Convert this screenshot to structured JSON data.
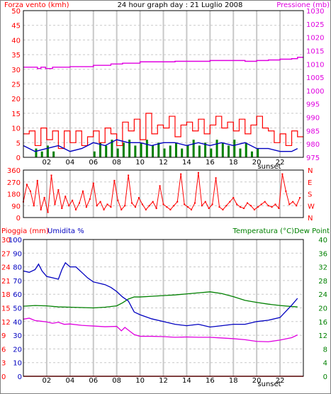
{
  "header": {
    "title": "24 hour graph day : 21 Luglio 2008",
    "left_label": "Forza vento (kmh)",
    "right_label": "Pressione (mb)"
  },
  "colors": {
    "wind": "#ff0000",
    "wind_avg": "#0000c0",
    "rain_bars": "#008000",
    "pressure": "#e000e0",
    "direction": "#ff0000",
    "temperature": "#008000",
    "dew_point": "#e000e0",
    "humidity": "#0000c0",
    "rain": "#ff0000",
    "grid": "#c8c8c8",
    "frame": "#000000"
  },
  "x_ticks": [
    "02",
    "04",
    "06",
    "08",
    "10",
    "12",
    "14",
    "16",
    "18",
    "20",
    "22"
  ],
  "sunset_label": "sunset",
  "chart_data": [
    {
      "type": "line",
      "id": "wind-pressure",
      "ylim": [
        0,
        50
      ],
      "y_ticks": [
        "0",
        "5",
        "10",
        "15",
        "20",
        "25",
        "30",
        "35",
        "40",
        "45",
        "50"
      ],
      "y2lim": [
        975,
        1030
      ],
      "y2_ticks": [
        "975",
        "980",
        "985",
        "990",
        "995",
        "1000",
        "1005",
        "1010",
        "1015",
        "1020",
        "1025",
        "1030"
      ],
      "series": [
        {
          "name": "Forza vento (kmh)",
          "axis": "left",
          "hours": [
            0,
            0.5,
            1,
            1.5,
            2,
            2.5,
            3,
            3.5,
            4,
            4.5,
            5,
            5.5,
            6,
            6.5,
            7,
            7.5,
            8,
            8.5,
            9,
            9.5,
            10,
            10.5,
            11,
            11.5,
            12,
            12.5,
            13,
            13.5,
            14,
            14.5,
            15,
            15.5,
            16,
            16.5,
            17,
            17.5,
            18,
            18.5,
            19,
            19.5,
            20,
            20.5,
            21,
            21.5,
            22,
            22.5,
            23,
            23.5
          ],
          "values": [
            8,
            9,
            4,
            10,
            6,
            9,
            3,
            9,
            5,
            9,
            4,
            7,
            9,
            5,
            10,
            8,
            4,
            12,
            9,
            13,
            6,
            15,
            8,
            11,
            10,
            14,
            7,
            11,
            12,
            9,
            13,
            8,
            11,
            14,
            10,
            12,
            9,
            13,
            8,
            11,
            14,
            10,
            9,
            5,
            8,
            4,
            9,
            7
          ]
        },
        {
          "name": "",
          "axis": "left",
          "hours": [
            0,
            1,
            2,
            3,
            4,
            5,
            6,
            7,
            8,
            9,
            10,
            11,
            12,
            13,
            14,
            15,
            16,
            17,
            18,
            19,
            20,
            21,
            22,
            23,
            23.5
          ],
          "values": [
            4,
            2,
            3,
            4,
            2,
            3,
            5,
            4,
            6,
            5,
            5,
            4,
            5,
            5,
            4,
            5,
            4,
            5,
            4,
            5,
            3,
            3,
            2,
            2,
            3
          ]
        },
        {
          "name": "",
          "axis": "left",
          "type": "bar",
          "hours": [
            1,
            1.5,
            2,
            2.5,
            6,
            6.5,
            7,
            7.5,
            8,
            8.5,
            9,
            9.5,
            10,
            10.5,
            11,
            11.5,
            12,
            12.5,
            13,
            13.5,
            14,
            14.5,
            15,
            15.5,
            16,
            16.5,
            17,
            17.5,
            18,
            18.5,
            19,
            19.5,
            20
          ],
          "values": [
            3,
            2,
            4,
            2,
            2,
            5,
            4,
            6,
            3,
            5,
            6,
            4,
            5,
            6,
            4,
            5,
            3,
            4,
            5,
            3,
            4,
            6,
            4,
            5,
            3,
            6,
            5,
            4,
            6,
            3,
            5,
            2,
            3
          ]
        },
        {
          "name": "Pressione (mb)",
          "axis": "right",
          "hours": [
            0,
            1.2,
            1.2,
            1.5,
            1.5,
            1.9,
            1.9,
            2.5,
            3,
            4,
            5,
            6,
            7,
            7.5,
            8,
            8.5,
            9,
            10,
            11,
            12,
            13,
            14,
            15,
            16,
            17,
            18,
            19,
            20,
            20.5,
            21,
            21.5,
            22,
            23,
            23.5
          ],
          "values": [
            1008.8,
            1008.8,
            1008.3,
            1008.3,
            1008.8,
            1008.8,
            1008.3,
            1008.8,
            1008.8,
            1009,
            1009,
            1009.5,
            1009.5,
            1010,
            1010,
            1010.3,
            1010.3,
            1010.8,
            1010.8,
            1010.8,
            1011,
            1011,
            1011,
            1011.3,
            1011.3,
            1011.3,
            1011,
            1011.3,
            1011.3,
            1011.5,
            1011.5,
            1011.8,
            1012,
            1012.5
          ]
        }
      ]
    },
    {
      "type": "scatter",
      "id": "wind-direction",
      "ylim": [
        0,
        360
      ],
      "y_ticks": [
        "0",
        "90",
        "180",
        "270",
        "360"
      ],
      "y2_ticks": [
        "N",
        "W",
        "S",
        "E",
        "N"
      ],
      "series": [
        {
          "name": "",
          "hours": [
            0,
            0.3,
            0.6,
            0.9,
            1.2,
            1.5,
            1.8,
            2.1,
            2.4,
            2.7,
            3,
            3.3,
            3.6,
            3.9,
            4.2,
            4.5,
            4.8,
            5.1,
            5.4,
            5.7,
            6,
            6.3,
            6.6,
            6.9,
            7.2,
            7.5,
            7.8,
            8.1,
            8.4,
            8.7,
            9,
            9.3,
            9.6,
            9.9,
            10.2,
            10.5,
            10.8,
            11.1,
            11.4,
            11.7,
            12,
            12.3,
            12.6,
            12.9,
            13.2,
            13.5,
            13.8,
            14.1,
            14.4,
            14.7,
            15,
            15.3,
            15.6,
            15.9,
            16.2,
            16.5,
            16.8,
            17.1,
            17.4,
            17.7,
            18,
            18.3,
            18.6,
            18.9,
            19.2,
            19.5,
            19.8,
            20.1,
            20.4,
            20.7,
            21,
            21.3,
            21.6,
            21.9,
            22.2,
            22.5,
            22.8,
            23.1,
            23.4,
            23.7
          ],
          "values": [
            120,
            250,
            200,
            90,
            280,
            60,
            150,
            40,
            320,
            100,
            210,
            70,
            160,
            90,
            130,
            60,
            110,
            200,
            80,
            140,
            260,
            90,
            120,
            60,
            100,
            80,
            280,
            130,
            60,
            90,
            320,
            110,
            80,
            150,
            100,
            60,
            90,
            120,
            70,
            240,
            100,
            80,
            60,
            90,
            120,
            330,
            100,
            80,
            60,
            110,
            340,
            90,
            120,
            70,
            100,
            300,
            80,
            60,
            90,
            120,
            150,
            100,
            80,
            70,
            110,
            90,
            60,
            80,
            100,
            120,
            90,
            80,
            100,
            70,
            330,
            200,
            100,
            120,
            90,
            150
          ]
        }
      ]
    },
    {
      "type": "line",
      "id": "temp-humidity",
      "header_left_1": "Pioggia (mm)",
      "header_left_2": "Umidita %",
      "header_right": "Temperatura (°C)Dew Point",
      "rain_ticks": [
        "0",
        "3",
        "6",
        "9",
        "12",
        "15",
        "18",
        "21",
        "24",
        "27",
        "30"
      ],
      "humidity_ticks": [
        "0",
        "10",
        "20",
        "30",
        "40",
        "50",
        "60",
        "70",
        "80",
        "90",
        "100"
      ],
      "temperature_ticks": [
        "0",
        "4",
        "8",
        "12",
        "16",
        "20",
        "24",
        "28",
        "32",
        "36",
        "40"
      ],
      "ylim_temperature": [
        0,
        40
      ],
      "ylim_humidity": [
        0,
        100
      ],
      "ylim_rain": [
        0,
        30
      ],
      "series": [
        {
          "name": "Temperatura (°C)",
          "axis": "temperature",
          "hours": [
            0,
            1,
            2,
            3,
            4,
            5,
            6,
            7,
            8,
            8.5,
            9,
            9.5,
            10,
            11,
            12,
            13,
            14,
            15,
            16,
            17,
            18,
            19,
            20,
            21,
            22,
            23,
            23.5
          ],
          "values": [
            20.5,
            20.7,
            20.6,
            20.3,
            20.2,
            20.1,
            20,
            20.2,
            20.6,
            21.5,
            22.6,
            23.2,
            23.2,
            23.4,
            23.6,
            23.8,
            24.1,
            24.4,
            24.7,
            24.2,
            23.3,
            22.2,
            21.6,
            21.1,
            20.7,
            20.4,
            20.3
          ]
        },
        {
          "name": "Dew Point",
          "axis": "temperature",
          "hours": [
            0,
            0.5,
            1,
            1.5,
            2,
            2.5,
            3,
            3.5,
            4,
            5,
            6,
            7,
            8,
            8.4,
            8.7,
            9,
            9.5,
            10,
            11,
            12,
            13,
            14,
            15,
            16,
            17,
            18,
            19,
            20,
            21,
            22,
            23,
            23.5
          ],
          "values": [
            16.7,
            17,
            16.3,
            16.1,
            15.9,
            15.5,
            15.8,
            15.2,
            15.3,
            14.9,
            14.7,
            14.5,
            14.6,
            13.3,
            14.3,
            13.5,
            12.2,
            11.7,
            11.7,
            11.6,
            11.4,
            11.5,
            11.4,
            11.4,
            11.2,
            11.0,
            10.7,
            10.2,
            10.1,
            10.6,
            11.3,
            12.1
          ]
        },
        {
          "name": "Umidita %",
          "axis": "humidity",
          "hours": [
            0,
            0.5,
            1,
            1.3,
            1.6,
            2,
            2.5,
            3,
            3.3,
            3.6,
            4,
            4.5,
            5,
            5.5,
            6,
            6.5,
            7,
            7.5,
            8,
            8.5,
            9,
            9.5,
            10,
            11,
            12,
            13,
            14,
            15,
            16,
            17,
            18,
            19,
            20,
            21,
            22,
            23,
            23.5
          ],
          "values": [
            77,
            76,
            78,
            82,
            77,
            73,
            72,
            71,
            78,
            83,
            80,
            80,
            76,
            72,
            69,
            68,
            67,
            65,
            62,
            58,
            55,
            47,
            45,
            42,
            40,
            38,
            37,
            38,
            36,
            37,
            38,
            38,
            40,
            41,
            43,
            52,
            57
          ]
        },
        {
          "name": "Pioggia (mm)",
          "axis": "rain",
          "hours": [
            0,
            24
          ],
          "values": [
            0,
            0
          ]
        }
      ]
    }
  ]
}
